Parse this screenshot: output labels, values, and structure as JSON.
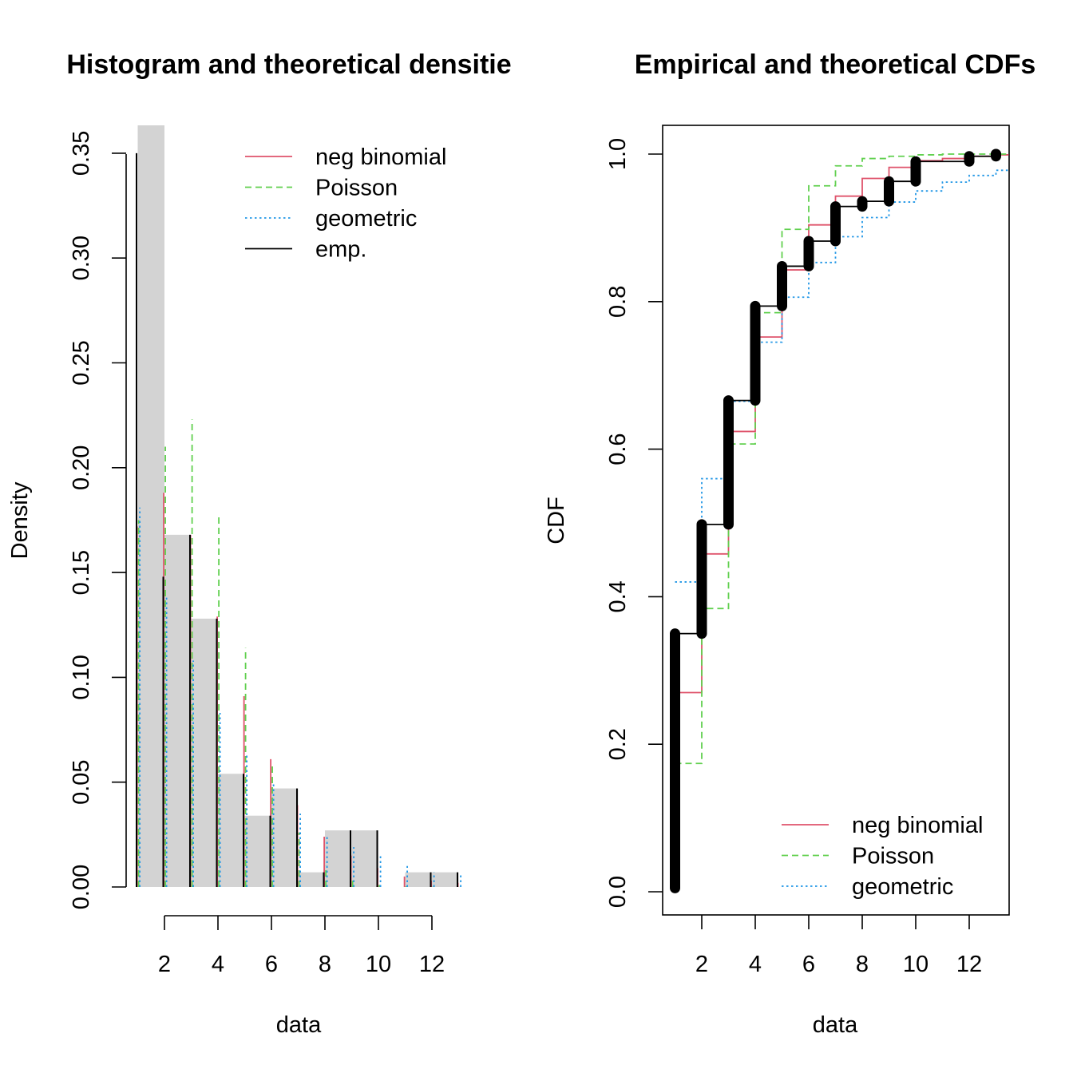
{
  "colors": {
    "negbin": "#DF536B",
    "poisson": "#61D04F",
    "geometric": "#2297E6",
    "emp": "#000000",
    "hist": "#D3D3D3"
  },
  "chart_data": [
    {
      "type": "bar",
      "title": "Histogram and theoretical densitie",
      "xlabel": "data",
      "ylabel": "Density",
      "xlim": [
        0.84,
        13.18
      ],
      "ylim": [
        0,
        0.35
      ],
      "xticks": [
        2,
        4,
        6,
        8,
        10,
        12
      ],
      "yticks": [
        0.0,
        0.05,
        0.1,
        0.15,
        0.2,
        0.25,
        0.3,
        0.35
      ],
      "ytick_labels": [
        "0.00",
        "0.05",
        "0.10",
        "0.15",
        "0.20",
        "0.25",
        "0.30",
        "0.35"
      ],
      "legend_position": "top-right",
      "histogram": {
        "bin_edges": [
          1,
          2,
          3,
          4,
          5,
          6,
          7,
          8,
          9,
          10,
          11,
          12,
          13
        ],
        "density": [
          0.37,
          0.168,
          0.128,
          0.054,
          0.034,
          0.047,
          0.007,
          0.027,
          0.027,
          0,
          0.007,
          0.007
        ]
      },
      "x": [
        1,
        2,
        3,
        4,
        5,
        6,
        7,
        8,
        9,
        10,
        11,
        12,
        13
      ],
      "series": [
        {
          "name": "neg binomial",
          "key": "negbin",
          "style": "solid",
          "values": [
            0.172,
            0.188,
            0.168,
            0.129,
            0.091,
            0.061,
            0.039,
            0.024,
            0.015,
            0.009,
            0.005,
            0.003,
            0.002
          ]
        },
        {
          "name": "Poisson",
          "key": "poisson",
          "style": "dashed",
          "values": [
            0.175,
            0.21,
            0.223,
            0.178,
            0.114,
            0.059,
            0.026,
            0.01,
            0.003,
            0.001,
            0.0003,
            0.0001,
            3e-05
          ]
        },
        {
          "name": "geometric",
          "key": "geometric",
          "style": "dotted",
          "values": [
            0.181,
            0.138,
            0.108,
            0.083,
            0.063,
            0.049,
            0.035,
            0.025,
            0.019,
            0.016,
            0.01,
            0.007,
            0.006
          ]
        },
        {
          "name": "emp.",
          "key": "emp",
          "style": "solid",
          "values": [
            0.35,
            0.148,
            0.168,
            0.128,
            0.054,
            0.034,
            0.047,
            0.007,
            0.027,
            0.027,
            0,
            0.007,
            0.007
          ]
        }
      ]
    },
    {
      "type": "line",
      "title": "Empirical and theoretical CDFs",
      "xlabel": "data",
      "ylabel": "CDF",
      "xlim": [
        0.52,
        13.48
      ],
      "ylim": [
        -0.0,
        1.0
      ],
      "xticks": [
        2,
        4,
        6,
        8,
        10,
        12
      ],
      "yticks": [
        0.0,
        0.2,
        0.4,
        0.6,
        0.8,
        1.0
      ],
      "ytick_labels": [
        "0.0",
        "0.2",
        "0.4",
        "0.6",
        "0.8",
        "1.0"
      ],
      "legend_position": "bottom-right",
      "x": [
        1,
        2,
        3,
        4,
        5,
        6,
        7,
        8,
        9,
        10,
        11,
        12,
        13
      ],
      "emp_cdf": [
        0.35,
        0.498,
        0.666,
        0.794,
        0.848,
        0.882,
        0.929,
        0.936,
        0.963,
        0.99,
        0.99,
        0.997,
        1.0
      ],
      "series": [
        {
          "name": "neg binomial",
          "key": "negbin",
          "style": "solid",
          "values": [
            0.27,
            0.458,
            0.624,
            0.752,
            0.843,
            0.904,
            0.943,
            0.967,
            0.982,
            0.991,
            0.994,
            0.997,
            0.999
          ]
        },
        {
          "name": "Poisson",
          "key": "poisson",
          "style": "dashed",
          "values": [
            0.174,
            0.384,
            0.607,
            0.785,
            0.898,
            0.957,
            0.984,
            0.994,
            0.997,
            0.999,
            1.0,
            1.0,
            1.0
          ]
        },
        {
          "name": "geometric",
          "key": "geometric",
          "style": "dotted",
          "values": [
            0.42,
            0.56,
            0.665,
            0.745,
            0.806,
            0.853,
            0.888,
            0.914,
            0.935,
            0.95,
            0.962,
            0.971,
            0.978
          ]
        }
      ]
    }
  ]
}
